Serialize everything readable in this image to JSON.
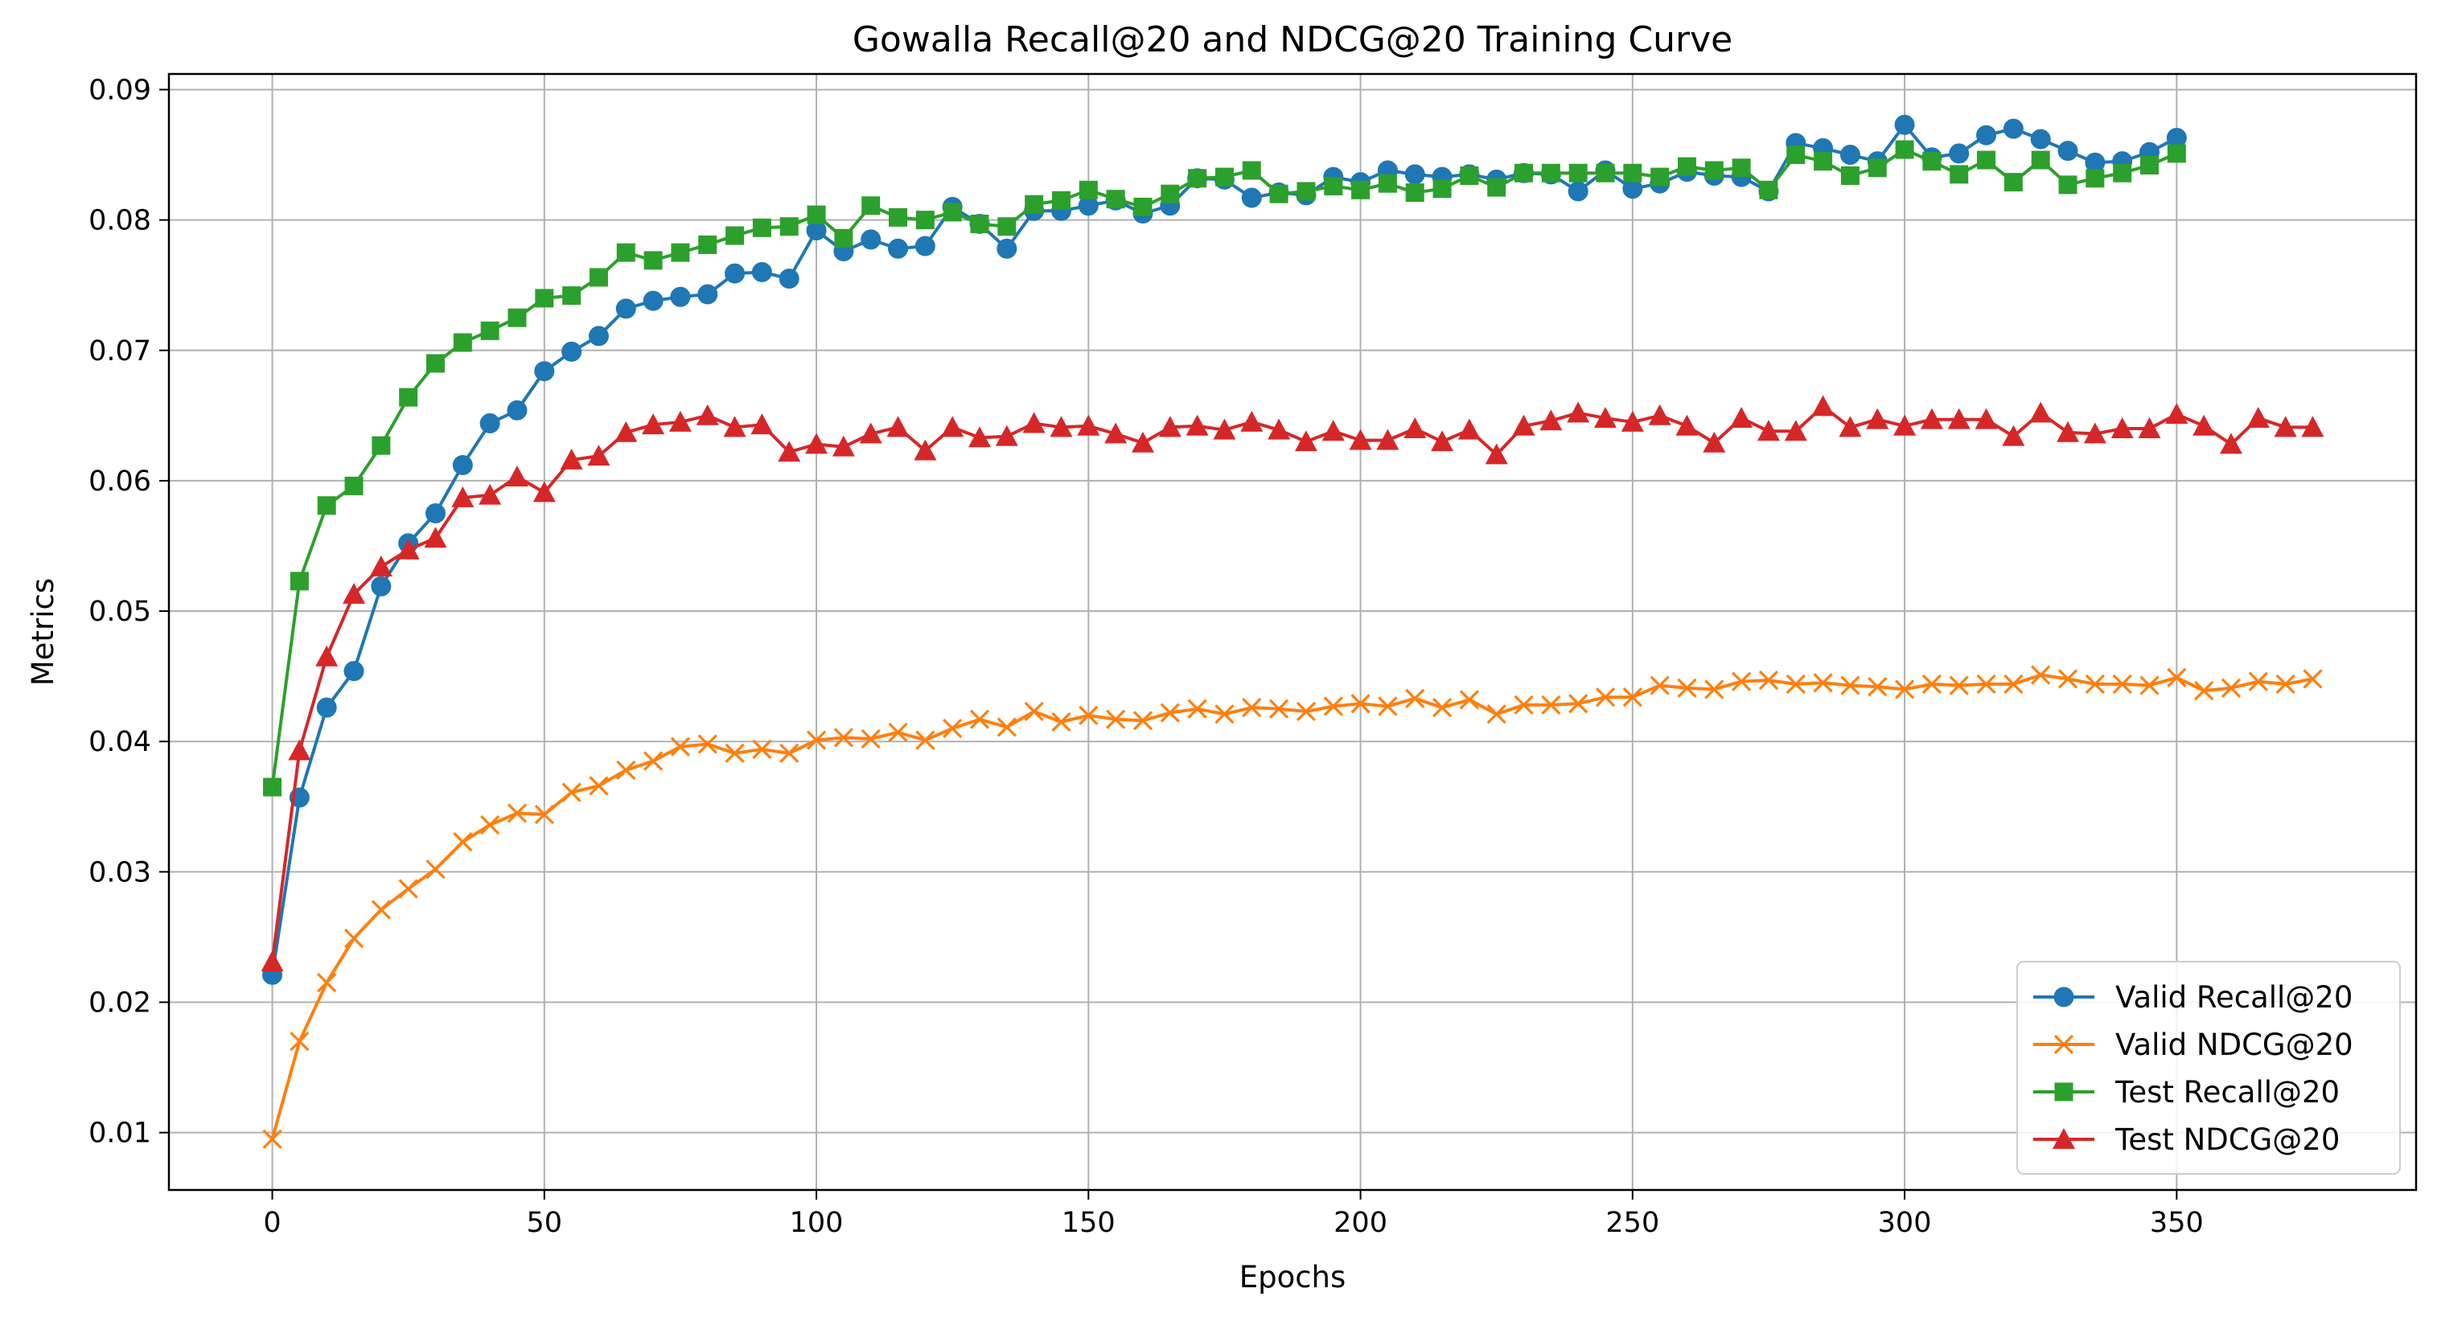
{
  "chart_data": {
    "type": "line",
    "title": "Gowalla Recall@20 and NDCG@20 Training Curve",
    "xlabel": "Epochs",
    "ylabel": "Metrics",
    "xlim": [
      -19,
      394
    ],
    "ylim": [
      0.0056,
      0.0912
    ],
    "xticks": [
      0,
      50,
      100,
      150,
      200,
      250,
      300,
      350
    ],
    "yticks": [
      0.01,
      0.02,
      0.03,
      0.04,
      0.05,
      0.06,
      0.07,
      0.08,
      0.09
    ],
    "ytick_labels": [
      "0.01",
      "0.02",
      "0.03",
      "0.04",
      "0.05",
      "0.06",
      "0.07",
      "0.08",
      "0.09"
    ],
    "grid": true,
    "legend_position": "lower-right",
    "series": [
      {
        "name": "Valid Recall@20",
        "color": "#1f77b4",
        "marker": "circle",
        "x": [
          0,
          5,
          10,
          15,
          20,
          25,
          30,
          35,
          40,
          45,
          50,
          55,
          60,
          65,
          70,
          75,
          80,
          85,
          90,
          95,
          100,
          105,
          110,
          115,
          120,
          125,
          130,
          135,
          140,
          145,
          150,
          155,
          160,
          165,
          170,
          175,
          180,
          185,
          190,
          195,
          200,
          205,
          210,
          215,
          220,
          225,
          230,
          235,
          240,
          245,
          250,
          255,
          260,
          265,
          270,
          275,
          280,
          285,
          290,
          295,
          300,
          305,
          310,
          315,
          320,
          325,
          330,
          335,
          340,
          345,
          350
        ],
        "values": [
          0.0221,
          0.0357,
          0.0426,
          0.0454,
          0.0519,
          0.0552,
          0.0575,
          0.0612,
          0.0644,
          0.0654,
          0.0684,
          0.0699,
          0.0711,
          0.0732,
          0.0738,
          0.0741,
          0.0743,
          0.0759,
          0.076,
          0.0755,
          0.0792,
          0.0776,
          0.0785,
          0.0778,
          0.078,
          0.081,
          0.0797,
          0.0778,
          0.0807,
          0.0807,
          0.0811,
          0.0815,
          0.0805,
          0.0811,
          0.0832,
          0.0831,
          0.0817,
          0.0821,
          0.0819,
          0.0833,
          0.0829,
          0.0838,
          0.0835,
          0.0833,
          0.0835,
          0.0831,
          0.0836,
          0.0835,
          0.0822,
          0.0838,
          0.0824,
          0.0828,
          0.0837,
          0.0834,
          0.0833,
          0.0822,
          0.0859,
          0.0855,
          0.085,
          0.0845,
          0.0873,
          0.0848,
          0.0851,
          0.0865,
          0.087,
          0.0862,
          0.0853,
          0.0844,
          0.0845,
          0.0852,
          0.0863
        ]
      },
      {
        "name": "Valid NDCG@20",
        "color": "#ff7f0e",
        "marker": "x",
        "x": [
          0,
          5,
          10,
          15,
          20,
          25,
          30,
          35,
          40,
          45,
          50,
          55,
          60,
          65,
          70,
          75,
          80,
          85,
          90,
          95,
          100,
          105,
          110,
          115,
          120,
          125,
          130,
          135,
          140,
          145,
          150,
          155,
          160,
          165,
          170,
          175,
          180,
          185,
          190,
          195,
          200,
          205,
          210,
          215,
          220,
          225,
          230,
          235,
          240,
          245,
          250,
          255,
          260,
          265,
          270,
          275,
          280,
          285,
          290,
          295,
          300,
          305,
          310,
          315,
          320,
          325,
          330,
          335,
          340,
          345,
          350,
          355,
          360,
          365,
          370,
          375
        ],
        "values": [
          0.0095,
          0.017,
          0.0215,
          0.0249,
          0.0271,
          0.0287,
          0.0302,
          0.0323,
          0.0336,
          0.0345,
          0.0344,
          0.0361,
          0.0366,
          0.0378,
          0.0385,
          0.0396,
          0.0398,
          0.0391,
          0.0394,
          0.0391,
          0.0401,
          0.0403,
          0.0402,
          0.0407,
          0.0401,
          0.041,
          0.0417,
          0.0411,
          0.0423,
          0.0415,
          0.042,
          0.0417,
          0.0416,
          0.0422,
          0.0425,
          0.0421,
          0.0426,
          0.0425,
          0.0423,
          0.0427,
          0.0429,
          0.0427,
          0.0433,
          0.0426,
          0.0432,
          0.0421,
          0.0428,
          0.0428,
          0.0429,
          0.0434,
          0.0434,
          0.0443,
          0.0441,
          0.044,
          0.0446,
          0.0447,
          0.0444,
          0.0445,
          0.0443,
          0.0442,
          0.044,
          0.0444,
          0.0443,
          0.0444,
          0.0444,
          0.0451,
          0.0448,
          0.0444,
          0.0444,
          0.0443,
          0.0449,
          0.0439,
          0.0441,
          0.0446,
          0.0444,
          0.0448
        ]
      },
      {
        "name": "Test Recall@20",
        "color": "#2ca02c",
        "marker": "square",
        "x": [
          0,
          5,
          10,
          15,
          20,
          25,
          30,
          35,
          40,
          45,
          50,
          55,
          60,
          65,
          70,
          75,
          80,
          85,
          90,
          95,
          100,
          105,
          110,
          115,
          120,
          125,
          130,
          135,
          140,
          145,
          150,
          155,
          160,
          165,
          170,
          175,
          180,
          185,
          190,
          195,
          200,
          205,
          210,
          215,
          220,
          225,
          230,
          235,
          240,
          245,
          250,
          255,
          260,
          265,
          270,
          275,
          280,
          285,
          290,
          295,
          300,
          305,
          310,
          315,
          320,
          325,
          330,
          335,
          340,
          345,
          350
        ],
        "values": [
          0.0365,
          0.0523,
          0.0581,
          0.0596,
          0.0627,
          0.0664,
          0.069,
          0.0706,
          0.0715,
          0.0725,
          0.074,
          0.0742,
          0.0756,
          0.0775,
          0.0769,
          0.0775,
          0.0781,
          0.0788,
          0.0794,
          0.0795,
          0.0804,
          0.0786,
          0.0811,
          0.0802,
          0.08,
          0.0806,
          0.0797,
          0.0795,
          0.0812,
          0.0815,
          0.0823,
          0.0816,
          0.081,
          0.082,
          0.0832,
          0.0833,
          0.0838,
          0.082,
          0.0822,
          0.0826,
          0.0823,
          0.0828,
          0.0821,
          0.0824,
          0.0834,
          0.0825,
          0.0836,
          0.0836,
          0.0836,
          0.0836,
          0.0836,
          0.0833,
          0.0841,
          0.0838,
          0.084,
          0.0823,
          0.085,
          0.0845,
          0.0834,
          0.084,
          0.0854,
          0.0845,
          0.0835,
          0.0846,
          0.0829,
          0.0846,
          0.0827,
          0.0832,
          0.0836,
          0.0842,
          0.0851
        ]
      },
      {
        "name": "Test NDCG@20",
        "color": "#d62728",
        "marker": "triangle",
        "x": [
          0,
          5,
          10,
          15,
          20,
          25,
          30,
          35,
          40,
          45,
          50,
          55,
          60,
          65,
          70,
          75,
          80,
          85,
          90,
          95,
          100,
          105,
          110,
          115,
          120,
          125,
          130,
          135,
          140,
          145,
          150,
          155,
          160,
          165,
          170,
          175,
          180,
          185,
          190,
          195,
          200,
          205,
          210,
          215,
          220,
          225,
          230,
          235,
          240,
          245,
          250,
          255,
          260,
          265,
          270,
          275,
          280,
          285,
          290,
          295,
          300,
          305,
          310,
          315,
          320,
          325,
          330,
          335,
          340,
          345,
          350,
          355,
          360,
          365,
          370,
          375
        ],
        "values": [
          0.0231,
          0.0393,
          0.0465,
          0.0513,
          0.0534,
          0.0547,
          0.0556,
          0.0587,
          0.0589,
          0.0603,
          0.0591,
          0.0616,
          0.0619,
          0.0637,
          0.0643,
          0.0645,
          0.065,
          0.0641,
          0.0643,
          0.0622,
          0.0628,
          0.0626,
          0.0636,
          0.0641,
          0.0623,
          0.0641,
          0.0633,
          0.0634,
          0.0644,
          0.0641,
          0.0642,
          0.0636,
          0.0629,
          0.0641,
          0.0642,
          0.0639,
          0.0645,
          0.0639,
          0.063,
          0.0638,
          0.0631,
          0.0631,
          0.064,
          0.063,
          0.0639,
          0.062,
          0.0642,
          0.0646,
          0.0652,
          0.0648,
          0.0645,
          0.065,
          0.0642,
          0.0629,
          0.0648,
          0.0638,
          0.0638,
          0.0657,
          0.0641,
          0.0647,
          0.0642,
          0.0647,
          0.0647,
          0.0647,
          0.0634,
          0.0652,
          0.0637,
          0.0636,
          0.064,
          0.064,
          0.0651,
          0.0642,
          0.0628,
          0.0648,
          0.0641,
          0.0641
        ]
      }
    ]
  }
}
